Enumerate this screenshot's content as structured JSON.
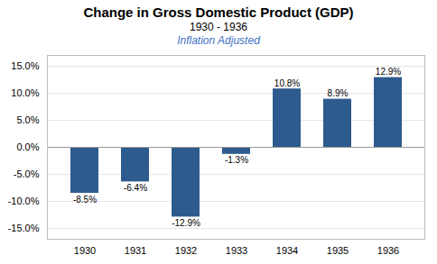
{
  "chart_data": {
    "type": "bar",
    "title": "Change in Gross Domestic Product (GDP)",
    "subtitle": [
      "1930 - 1936",
      "Inflation Adjusted"
    ],
    "categories": [
      "1930",
      "1931",
      "1932",
      "1933",
      "1934",
      "1935",
      "1936"
    ],
    "values": [
      -8.5,
      -6.4,
      -12.9,
      -1.3,
      10.8,
      8.9,
      12.9
    ],
    "value_labels": [
      "-8.5%",
      "-6.4%",
      "-12.9%",
      "-1.3%",
      "10.8%",
      "8.9%",
      "12.9%"
    ],
    "data_labels": true,
    "color": "#2E5B8E",
    "ylim": [
      -17,
      17
    ],
    "yticks": [
      {
        "value": -15.0,
        "label": "-15.0%"
      },
      {
        "value": -10.0,
        "label": "-10.0%"
      },
      {
        "value": -5.0,
        "label": "-5.0%"
      },
      {
        "value": 0.0,
        "label": "0.0%"
      },
      {
        "value": 5.0,
        "label": "5.0%"
      },
      {
        "value": 10.0,
        "label": "10.0%"
      },
      {
        "value": 15.0,
        "label": "15.0%"
      }
    ],
    "grid": true
  }
}
